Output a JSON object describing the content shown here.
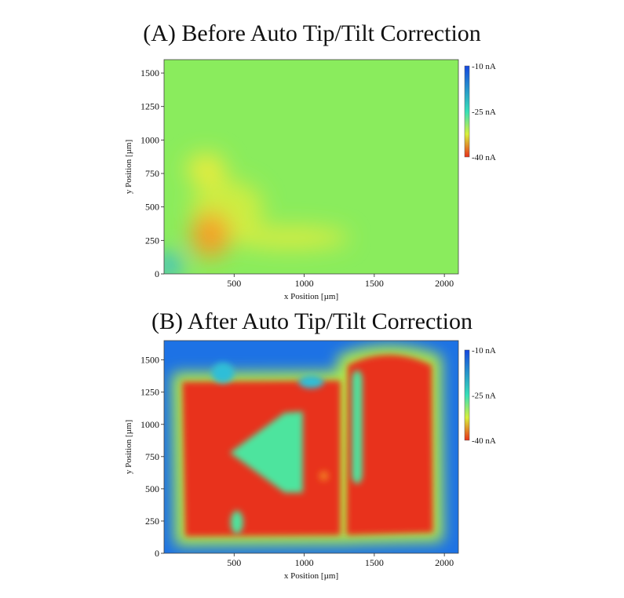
{
  "chart_data": [
    {
      "type": "heatmap",
      "title": "(A) Before Auto Tip/Tilt Correction",
      "xlabel": "x Position [µm]",
      "ylabel": "y Position [µm]",
      "xlim": [
        0,
        2100
      ],
      "ylim": [
        0,
        1600
      ],
      "x_ticks": [
        500,
        1000,
        1500,
        2000
      ],
      "y_ticks": [
        0,
        250,
        500,
        750,
        1000,
        1250,
        1500
      ],
      "colorbar": {
        "labels": [
          "-10 nA",
          "-25 nA",
          "-40 nA"
        ],
        "values": [
          -10,
          -25,
          -40
        ],
        "colors": [
          "#1548e0",
          "#36e0b8",
          "#e8311b"
        ]
      },
      "background_value": -28.5,
      "features": [
        {
          "shape": "blob",
          "x": 330,
          "y": 290,
          "rx": 140,
          "ry": 170,
          "value": -35
        },
        {
          "shape": "blob",
          "x": 300,
          "y": 780,
          "rx": 140,
          "ry": 120,
          "value": -32
        },
        {
          "shape": "blob",
          "x": 450,
          "y": 480,
          "rx": 260,
          "ry": 220,
          "value": -31
        },
        {
          "shape": "blob",
          "x": 900,
          "y": 270,
          "rx": 420,
          "ry": 80,
          "value": -31.5
        },
        {
          "shape": "blob",
          "x": 30,
          "y": 60,
          "rx": 90,
          "ry": 90,
          "value": -18
        }
      ]
    },
    {
      "type": "heatmap",
      "title": "(B) After Auto Tip/Tilt Correction",
      "xlabel": "x Position [µm]",
      "ylabel": "y Position [µm]",
      "xlim": [
        0,
        2100
      ],
      "ylim": [
        0,
        1650
      ],
      "x_ticks": [
        500,
        1000,
        1500,
        2000
      ],
      "y_ticks": [
        0,
        250,
        500,
        750,
        1000,
        1250,
        1500
      ],
      "colorbar": {
        "labels": [
          "-10 nA",
          "-25 nA",
          "-40 nA"
        ],
        "values": [
          -10,
          -25,
          -40
        ],
        "colors": [
          "#1548e0",
          "#36e0b8",
          "#e8311b"
        ]
      },
      "background_value": -13,
      "pattern_value": -40,
      "inner_value": -26,
      "features": [
        {
          "shape": "letter-K",
          "x_range": [
            150,
            1250
          ],
          "y_range": [
            150,
            1320
          ],
          "value": -40
        },
        {
          "shape": "letter-U",
          "x_range": [
            1300,
            1920
          ],
          "y_range": [
            150,
            1560
          ],
          "value": -40
        },
        {
          "shape": "blob",
          "x": 850,
          "y": 780,
          "rx": 140,
          "ry": 260,
          "value": -26
        },
        {
          "shape": "blob",
          "x": 1380,
          "y": 800,
          "rx": 50,
          "ry": 500,
          "value": -26
        },
        {
          "shape": "blob",
          "x": 520,
          "y": 230,
          "rx": 45,
          "ry": 80,
          "value": -26
        }
      ]
    }
  ]
}
